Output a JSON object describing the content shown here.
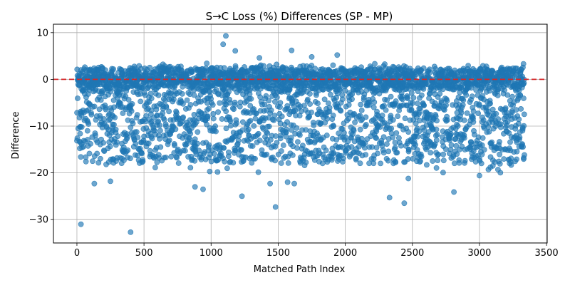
{
  "chart_data": {
    "type": "scatter",
    "title": "S→C Loss (%) Differences (SP - MP)",
    "xlabel": "Matched Path Index",
    "ylabel": "Difference",
    "xlim": [
      -175,
      3505
    ],
    "ylim": [
      -35,
      11.8
    ],
    "xticks": [
      0,
      500,
      1000,
      1500,
      2000,
      2500,
      3000,
      3500
    ],
    "yticks": [
      -30,
      -20,
      -10,
      0,
      10
    ],
    "grid": true,
    "point_color": "#1f77b4",
    "point_alpha": 0.65,
    "reference_line": {
      "y": 0,
      "color": "#d62728",
      "style": "dashed"
    },
    "series": [
      {
        "x_range": [
          0,
          3335
        ],
        "n_points": 3336,
        "dense_band_near_zero": [
          -2,
          2.5
        ],
        "dense_band_negative": [
          -18,
          -2
        ],
        "notable_points": [
          {
            "x": 30,
            "y": -31.0
          },
          {
            "x": 400,
            "y": -32.7
          },
          {
            "x": 1480,
            "y": -27.3
          },
          {
            "x": 2440,
            "y": -26.5
          },
          {
            "x": 2330,
            "y": -25.3
          },
          {
            "x": 1230,
            "y": -25.0
          },
          {
            "x": 2810,
            "y": -24.1
          },
          {
            "x": 940,
            "y": -23.5
          },
          {
            "x": 880,
            "y": -23.0
          },
          {
            "x": 1110,
            "y": 9.3
          },
          {
            "x": 1090,
            "y": 7.5
          },
          {
            "x": 1180,
            "y": 6.1
          },
          {
            "x": 1600,
            "y": 6.2
          },
          {
            "x": 1940,
            "y": 5.2
          },
          {
            "x": 1750,
            "y": 4.8
          },
          {
            "x": 1360,
            "y": 4.6
          },
          {
            "x": 990,
            "y": -19.7
          },
          {
            "x": 2470,
            "y": -21.2
          },
          {
            "x": 130,
            "y": -22.3
          },
          {
            "x": 250,
            "y": -21.8
          },
          {
            "x": 3000,
            "y": -20.6
          },
          {
            "x": 3100,
            "y": -18.5
          },
          {
            "x": 3330,
            "y": -16.8
          },
          {
            "x": 1620,
            "y": -22.3
          },
          {
            "x": 1570,
            "y": -22.0
          },
          {
            "x": 1440,
            "y": -22.3
          }
        ]
      }
    ]
  }
}
